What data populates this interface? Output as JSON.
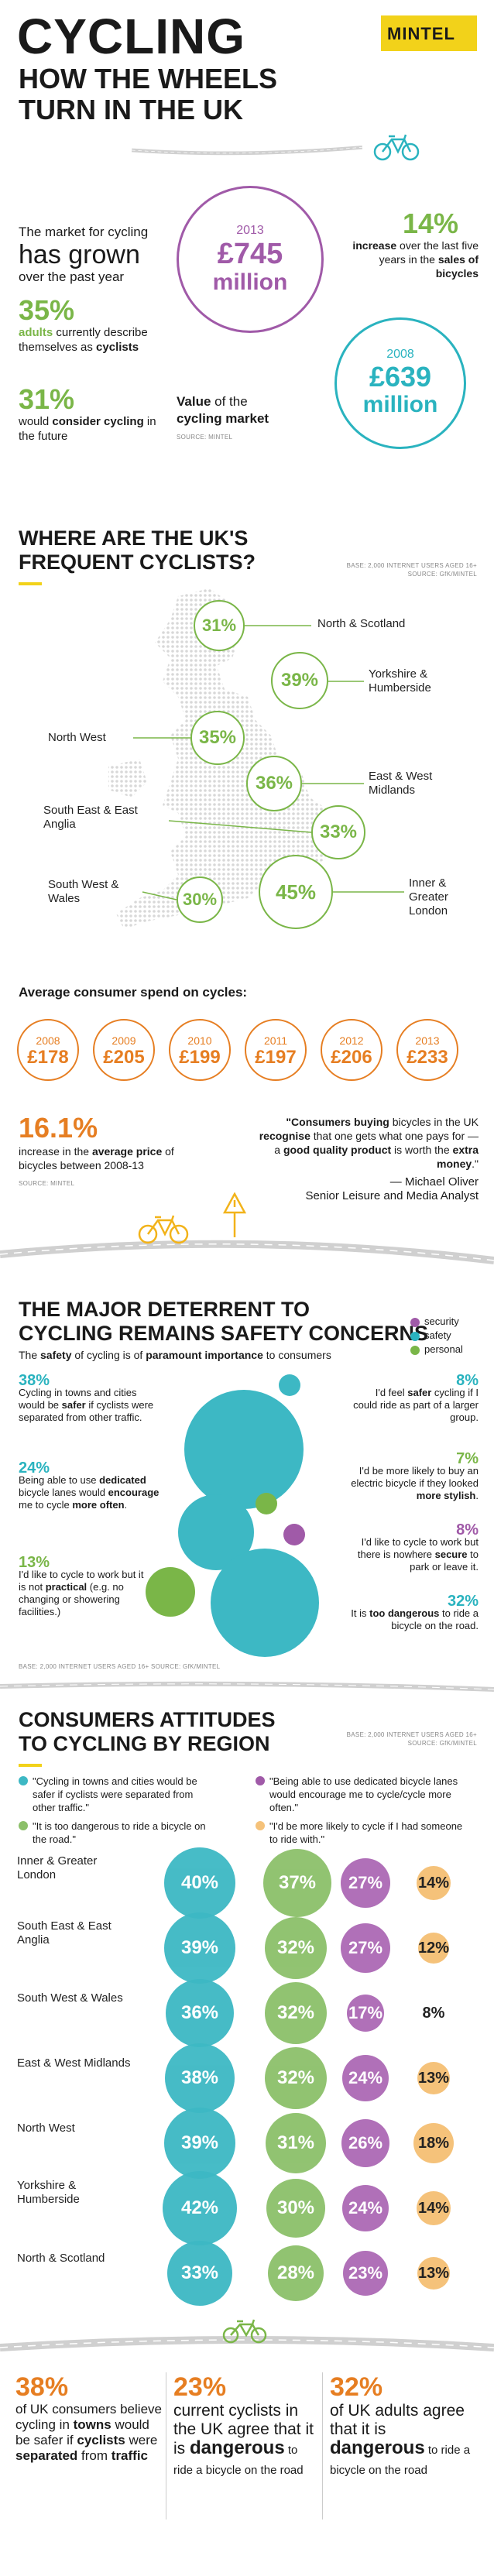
{
  "header": {
    "title": "CYCLING",
    "subtitle_line1": "HOW THE WHEELS",
    "subtitle_line2": "TURN IN THE UK",
    "logo": "MINTEL"
  },
  "market": {
    "intro1": "The market for cycling",
    "intro_big": "has grown",
    "intro2": "over the past year",
    "stat1_value": "35%",
    "stat1_bold": "adults",
    "stat1_text": " currently describe themselves as ",
    "stat1_bold2": "cyclists",
    "stat2_value": "31%",
    "stat2_text": "would ",
    "stat2_bold": "consider cycling",
    "stat2_text2": " in the future",
    "year_2013": "2013",
    "value_2013": "£745",
    "unit_2013": "million",
    "year_2008": "2008",
    "value_2008": "£639",
    "unit_2008": "million",
    "value_label_bold": "Value",
    "value_label_text": " of the",
    "value_label_line2": "cycling market",
    "source": "SOURCE: MINTEL",
    "increase_value": "14%",
    "increase_bold1": "increase",
    "increase_text": " over the last five years in the ",
    "increase_bold2": "sales of bicycles"
  },
  "map": {
    "title_bold": "WHERE",
    "title_rest": " ARE THE UK'S",
    "title_line2": "FREQUENT CYCLISTS?",
    "base": "BASE: 2,000 INTERNET USERS AGED 16+",
    "source": "SOURCE: GfK/MINTEL",
    "regions": [
      {
        "name": "North & Scotland",
        "value": "31%"
      },
      {
        "name": "Yorkshire & Humberside",
        "value": "39%"
      },
      {
        "name": "North West",
        "value": "35%"
      },
      {
        "name": "East & West Midlands",
        "value": "36%"
      },
      {
        "name": "South East & East Anglia",
        "value": "33%"
      },
      {
        "name": "South West & Wales",
        "value": "30%"
      },
      {
        "name": "Inner & Greater London",
        "value": "45%"
      }
    ]
  },
  "spend": {
    "title": "Average consumer spend on cycles:",
    "items": [
      {
        "year": "2008",
        "value": "£178"
      },
      {
        "year": "2009",
        "value": "£205"
      },
      {
        "year": "2010",
        "value": "£199"
      },
      {
        "year": "2011",
        "value": "£197"
      },
      {
        "year": "2012",
        "value": "£206"
      },
      {
        "year": "2013",
        "value": "£233"
      }
    ],
    "price_value": "16.1%",
    "price_text1": "increase in the ",
    "price_bold": "average price",
    "price_text2": " of bicycles between 2008-13",
    "source": "SOURCE: MINTEL",
    "quote1": "\"Consumers buying",
    "quote2": " bicycles in the UK ",
    "quote_bold1": "recognise",
    "quote3": " that one gets what one pays for — a ",
    "quote_bold2": "good quality product",
    "quote4": " is worth the ",
    "quote_bold3": "extra money",
    "quote5": ".\"",
    "author": "— Michael Oliver",
    "author_role": "Senior Leisure and Media Analyst"
  },
  "deterrent": {
    "title_line1a": "THE MAJOR ",
    "title_bold": "DETERRENT",
    "title_line1b": " TO",
    "title_line2": "CYCLING REMAINS SAFETY CONCERNS",
    "sub_a": "The ",
    "sub_bold1": "safety",
    "sub_b": " of cycling is of ",
    "sub_bold2": "paramount importance",
    "sub_c": " to consumers",
    "legend": [
      {
        "label": "security",
        "color": "#a05aa8"
      },
      {
        "label": "safety",
        "color": "#2ab3bf"
      },
      {
        "label": "personal",
        "color": "#7ab648"
      }
    ],
    "left": [
      {
        "value": "38%",
        "text": "Cycling in towns and cities would be ",
        "bold": "safer",
        "text2": " if cyclists were separated from other traffic."
      },
      {
        "value": "24%",
        "text": "Being able to use ",
        "bold": "dedicated",
        "text2": " bicycle lanes would ",
        "bold2": "encourage",
        "text3": " me to cycle ",
        "bold3": "more often",
        "text4": "."
      },
      {
        "value": "13%",
        "text": "I'd like to cycle to work but it is not ",
        "bold": "practical",
        "text2": " (e.g. no changing or showering facilities.)"
      }
    ],
    "right": [
      {
        "value": "8%",
        "text": "I'd feel ",
        "bold": "safer",
        "text2": " cycling if I could ride as part of a larger group."
      },
      {
        "value": "7%",
        "text": "I'd be more likely to buy an electric bicycle if they looked ",
        "bold": "more stylish",
        "text2": "."
      },
      {
        "value": "8%",
        "text": "I'd like to cycle to work but there is nowhere ",
        "bold": "secure",
        "text2": " to park or leave it."
      },
      {
        "value": "32%",
        "text": "It is ",
        "bold": "too dangerous",
        "text2": " to ride a bicycle on the road."
      }
    ],
    "base": "BASE: 2,000 INTERNET USERS AGED 16+  SOURCE: GfK/MINTEL"
  },
  "attitudes": {
    "title_line1": "CONSUMERS ATTITUDES",
    "title_line2": "TO CYCLING BY REGION",
    "base": "BASE: 2,000 INTERNET USERS AGED 16+",
    "source": "SOURCE: GfK/MINTEL",
    "legend": [
      "\"Cycling in towns and cities would be safer if cyclists were separated from other traffic.\"",
      "\"Being able to use dedicated bicycle lanes would encourage me to cycle/cycle more often.\"",
      "\"It is too dangerous to ride a bicycle on the road.\"",
      "\"I'd be more likely to cycle if I had someone to ride with.\""
    ],
    "rows": [
      {
        "region": "Inner & Greater London",
        "a": "40%",
        "b": "37%",
        "c": "27%",
        "d": "14%"
      },
      {
        "region": "South East & East Anglia",
        "a": "39%",
        "b": "32%",
        "c": "27%",
        "d": "12%"
      },
      {
        "region": "South West & Wales",
        "a": "36%",
        "b": "32%",
        "c": "17%",
        "d": "8%"
      },
      {
        "region": "East & West Midlands",
        "a": "38%",
        "b": "32%",
        "c": "24%",
        "d": "13%"
      },
      {
        "region": "North West",
        "a": "39%",
        "b": "31%",
        "c": "26%",
        "d": "18%"
      },
      {
        "region": "Yorkshire & Humberside",
        "a": "42%",
        "b": "30%",
        "c": "24%",
        "d": "14%"
      },
      {
        "region": "North & Scotland",
        "a": "33%",
        "b": "28%",
        "c": "23%",
        "d": "13%"
      }
    ]
  },
  "footer": {
    "col1_value": "38%",
    "col1_text1": "of UK consumers believe cycling in ",
    "col1_bold1": "towns",
    "col1_text2": " would be safer if ",
    "col1_bold2": "cyclists",
    "col1_text3": " were ",
    "col1_bold3": "separated",
    "col1_text4": " from ",
    "col1_bold4": "traffic",
    "col2_value": "23%",
    "col2_text1": "current cyclists in the UK agree that it is ",
    "col2_bold": "dangerous",
    "col2_text2": " to ride a bicycle on the road",
    "col3_value": "32%",
    "col3_text1": "of UK adults agree that it is ",
    "col3_bold": "dangerous",
    "col3_text2": " to ride a bicycle on the road"
  }
}
